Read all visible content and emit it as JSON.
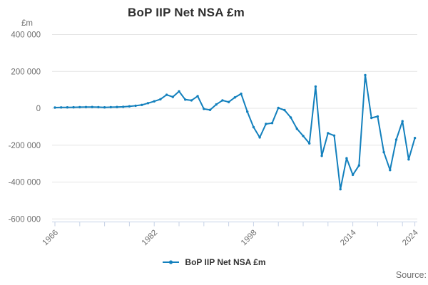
{
  "title": "BoP IIP Net NSA £m",
  "y_axis": {
    "unit": "£m",
    "tick_labels": [
      "400 000",
      "200 000",
      "0",
      "-200 000",
      "-400 000",
      "-600 000"
    ],
    "tick_values": [
      400000,
      200000,
      0,
      -200000,
      -400000,
      -600000
    ]
  },
  "x_axis": {
    "labeled_ticks": [
      1966,
      1982,
      1998,
      2014,
      2024
    ],
    "minor_tick_interval_years": 4
  },
  "legend": {
    "label": "BoP IIP Net NSA £m"
  },
  "source_label": "Source:",
  "colors": {
    "line": "#1380bd",
    "grid": "#e4e4e4",
    "axis": "#c6d2e6",
    "tick_text": "#6e6e6e",
    "title_text": "#2f2f2f",
    "legend_text": "#333333"
  },
  "chart_data": {
    "type": "line",
    "title": "BoP IIP Net NSA £m",
    "ylabel": "£m",
    "ylim": [
      -600000,
      400000
    ],
    "ytick_interval": 200000,
    "grid": "horizontal",
    "legend_position": "bottom",
    "x": [
      1966,
      1967,
      1968,
      1969,
      1970,
      1971,
      1972,
      1973,
      1974,
      1975,
      1976,
      1977,
      1978,
      1979,
      1980,
      1981,
      1982,
      1983,
      1984,
      1985,
      1986,
      1987,
      1988,
      1989,
      1990,
      1991,
      1992,
      1993,
      1994,
      1995,
      1996,
      1997,
      1998,
      1999,
      2000,
      2001,
      2002,
      2003,
      2004,
      2005,
      2006,
      2007,
      2008,
      2009,
      2010,
      2011,
      2012,
      2013,
      2014,
      2015,
      2016,
      2017,
      2018,
      2019,
      2020,
      2021,
      2022,
      2023,
      2024
    ],
    "series": [
      {
        "name": "BoP IIP Net NSA £m",
        "values": [
          4000,
          4500,
          5000,
          5500,
          6000,
          6500,
          7000,
          6000,
          5000,
          6000,
          7000,
          8000,
          11000,
          14000,
          18000,
          28000,
          38000,
          49000,
          73000,
          62000,
          92000,
          47000,
          43000,
          66000,
          -3000,
          -9000,
          21000,
          43000,
          34000,
          59000,
          79000,
          -18000,
          -102000,
          -158000,
          -85000,
          -80000,
          2000,
          -10000,
          -50000,
          -111000,
          -150000,
          -190000,
          118000,
          -258000,
          -135000,
          -148000,
          -439000,
          -271000,
          -361000,
          -310000,
          180000,
          -52000,
          -44000,
          -238000,
          -335000,
          -170000,
          -70000,
          -277000,
          -161000
        ]
      }
    ]
  }
}
